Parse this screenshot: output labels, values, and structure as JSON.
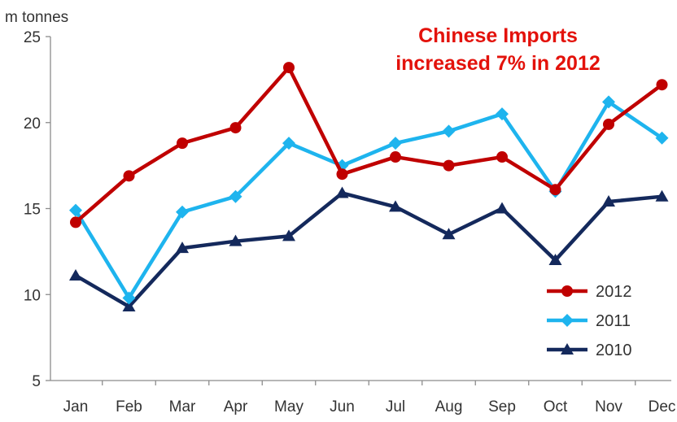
{
  "chart_data": {
    "type": "line",
    "title": "",
    "ylabel": "m tonnes",
    "xlabel": "",
    "annotation": [
      "Chinese Imports",
      "increased 7% in 2012"
    ],
    "categories": [
      "Jan",
      "Feb",
      "Mar",
      "Apr",
      "May",
      "Jun",
      "Jul",
      "Aug",
      "Sep",
      "Oct",
      "Nov",
      "Dec"
    ],
    "ylim": [
      5,
      25
    ],
    "yticks": [
      5,
      10,
      15,
      20,
      25
    ],
    "grid": false,
    "legend_position": "bottom-right",
    "series": [
      {
        "name": "2012",
        "color": "#c00000",
        "marker": "circle",
        "values": [
          14.2,
          16.9,
          18.8,
          19.7,
          23.2,
          17.0,
          18.0,
          17.5,
          18.0,
          16.1,
          19.9,
          22.2
        ]
      },
      {
        "name": "2011",
        "color": "#1eb4ee",
        "marker": "diamond",
        "values": [
          14.9,
          9.8,
          14.8,
          15.7,
          18.8,
          17.5,
          18.8,
          19.5,
          20.5,
          16.0,
          21.2,
          19.1
        ]
      },
      {
        "name": "2010",
        "color": "#14295c",
        "marker": "triangle",
        "values": [
          11.1,
          9.3,
          12.7,
          13.1,
          13.4,
          15.9,
          15.1,
          13.5,
          15.0,
          12.0,
          15.4,
          15.7
        ]
      }
    ]
  }
}
